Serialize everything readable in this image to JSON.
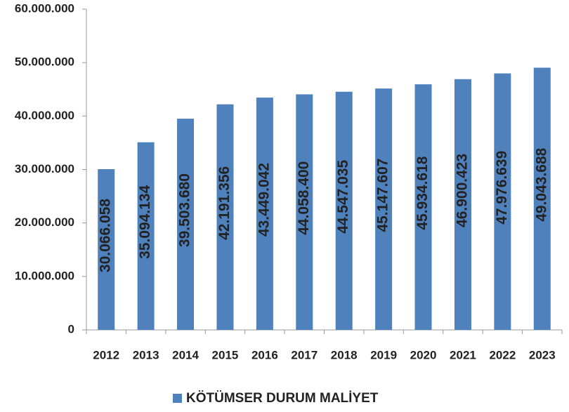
{
  "chart_data": {
    "type": "bar",
    "categories": [
      "2012",
      "2013",
      "2014",
      "2015",
      "2016",
      "2017",
      "2018",
      "2019",
      "2020",
      "2021",
      "2022",
      "2023"
    ],
    "series": [
      {
        "name": "KÖTÜMSER DURUM MALİYET",
        "color": "#4f81bd",
        "values": [
          30066058,
          35094134,
          39503680,
          42191356,
          43449042,
          44058400,
          44547035,
          45147607,
          45934618,
          46900423,
          47976639,
          49043688
        ],
        "value_labels": [
          "30.066.058",
          "35.094.134",
          "39.503.680",
          "42.191.356",
          "43.449.042",
          "44.058.400",
          "44.547.035",
          "45.147.607",
          "45.934.618",
          "46.900.423",
          "47.976.639",
          "49.043.688"
        ]
      }
    ],
    "ylim": [
      0,
      60000000
    ],
    "yticks": [
      0,
      {
        "value": 10000000,
        "label": "10.000.000"
      },
      {
        "value": 20000000,
        "label": "20.000.000"
      },
      {
        "value": 30000000,
        "label": "30.000.000"
      },
      {
        "value": 40000000,
        "label": "40.000.000"
      },
      {
        "value": 50000000,
        "label": "50.000.000"
      },
      {
        "value": 60000000,
        "label": "60.000.000"
      }
    ],
    "legend": "bottom"
  }
}
